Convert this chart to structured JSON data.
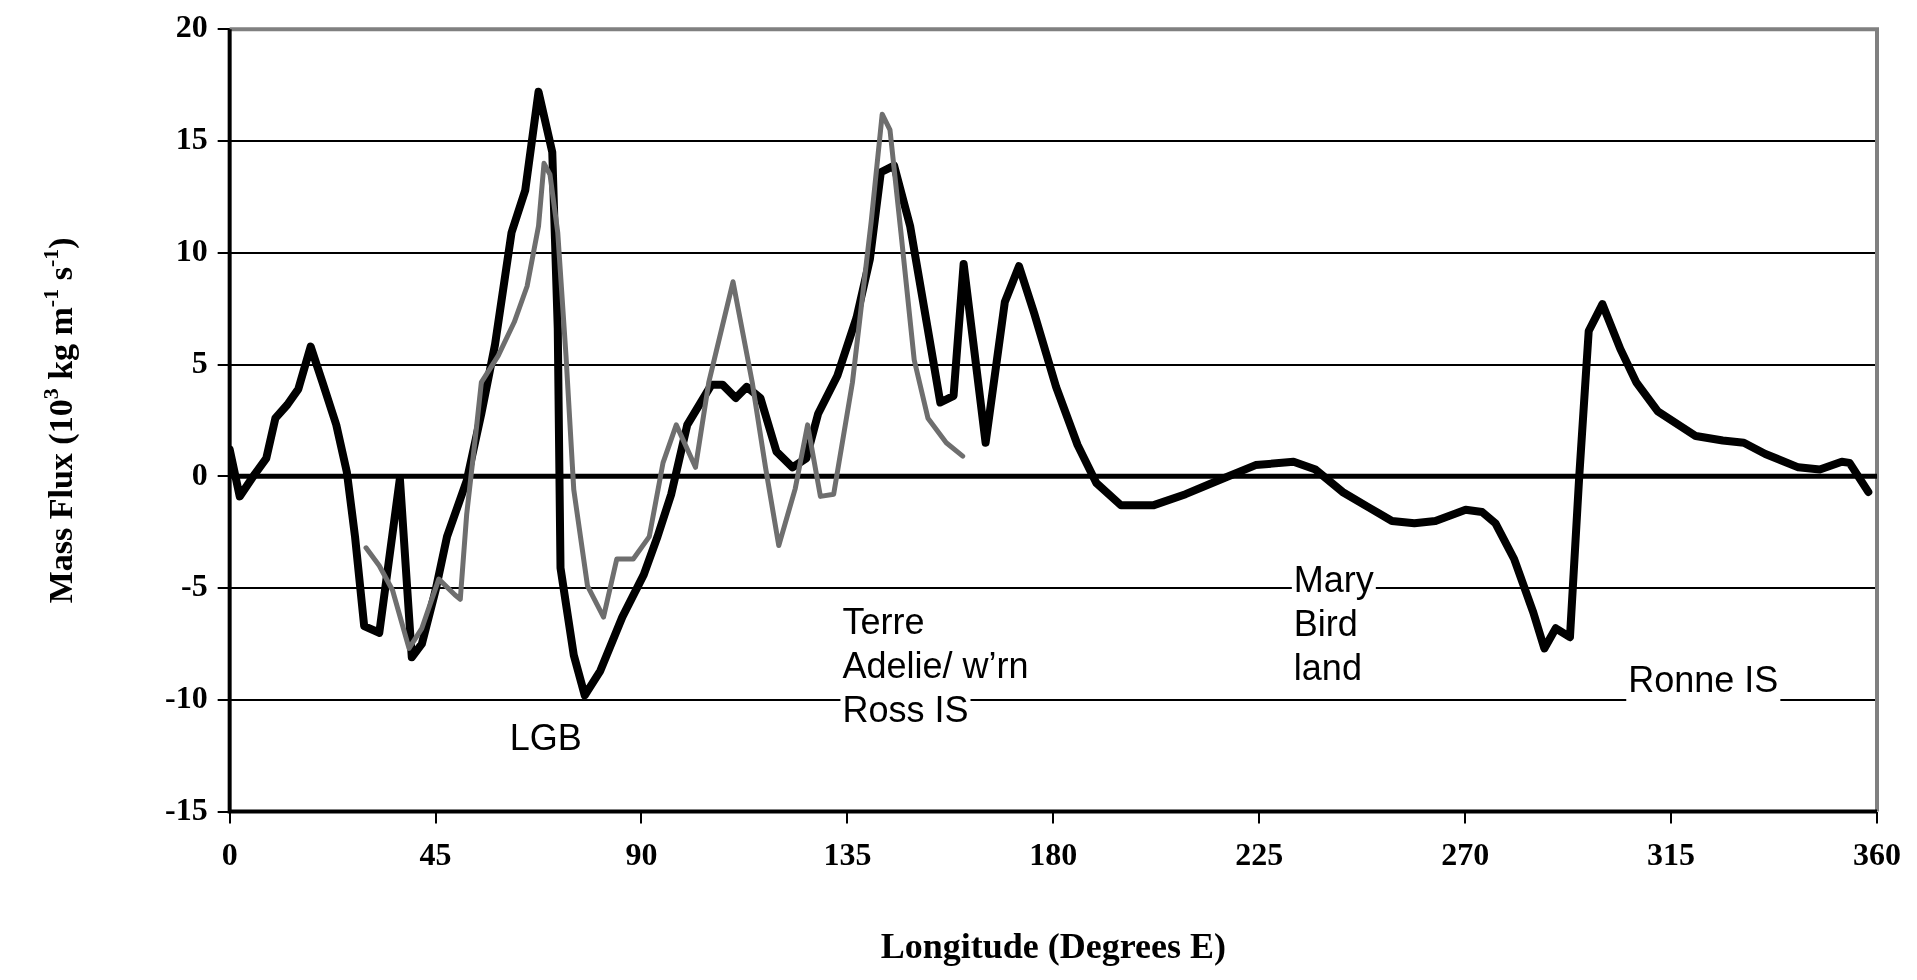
{
  "chart_data": {
    "type": "line",
    "xlabel": "Longitude (Degrees E)",
    "ylabel": "Mass Flux (10$^{3}$ kg m$^{-1}$ s$^{-1}$)",
    "xlim": [
      0,
      360
    ],
    "xticks": [
      0,
      45,
      90,
      135,
      180,
      225,
      270,
      315,
      360
    ],
    "ylim": [
      -15,
      20
    ],
    "yticks": [
      -15,
      -10,
      -5,
      0,
      5,
      10,
      15,
      20
    ],
    "grid": "y",
    "legend": false,
    "marker": "none",
    "line_style": "solid",
    "ref_lines": [
      {
        "axis": "y",
        "value": 0,
        "color": "#000000"
      }
    ],
    "annotations": [
      "LGB",
      "Terre\nAdelie/ w’rn\nRoss IS",
      "Mary\nBird\nland",
      "Ronne IS"
    ],
    "series": [
      {
        "color": "#6e6e6e",
        "x": [
          29.8,
          32.7,
          35.6,
          39.2,
          42,
          45.7,
          49.2,
          50.4,
          51.8,
          54,
          55,
          58.7,
          62.2,
          65,
          67.5,
          68.7,
          70,
          71.7,
          73.5,
          75.2,
          78.2,
          81.7,
          84.6,
          88.2,
          91.7,
          94.7,
          97.6,
          101.8,
          104.7,
          110,
          114.2,
          117.1,
          120,
          123.6,
          126.3,
          129.1,
          132,
          136.1,
          140.2,
          142.6,
          144.3,
          146.7,
          149.6,
          152.6,
          156.6,
          160.2
        ],
        "values": [
          -3.2,
          -4,
          -5.1,
          -7.7,
          -6.8,
          -4.6,
          -5.3,
          -5.5,
          -1.7,
          2.3,
          4.2,
          5.4,
          6.9,
          8.5,
          11.2,
          14,
          13.5,
          10.9,
          5.4,
          -0.6,
          -4.9,
          -6.3,
          -3.7,
          -3.7,
          -2.7,
          0.6,
          2.3,
          0.4,
          4.2,
          8.7,
          4.2,
          0.4,
          -3.1,
          -0.55,
          2.3,
          -0.9,
          -0.8,
          4.2,
          11.4,
          16.2,
          15.5,
          10.9,
          5.2,
          2.6,
          1.5,
          0.9
        ]
      },
      {
        "color": "#000000",
        "x": [
          0,
          2.2,
          5.5,
          8,
          10,
          12.6,
          15,
          17.7,
          20.3,
          23.3,
          25.6,
          27.4,
          29.4,
          32.7,
          37.2,
          39.8,
          42,
          45,
          47.5,
          51.8,
          55,
          58,
          61.6,
          64.6,
          67.5,
          70.5,
          71.7,
          72.3,
          75.2,
          77.6,
          81,
          85.8,
          90.5,
          93.5,
          96.5,
          100,
          105.3,
          107.7,
          110.6,
          113,
          116,
          119.5,
          123,
          126,
          128.6,
          132.8,
          137,
          139.9,
          142.3,
          145.2,
          148.7,
          152.3,
          155.3,
          158.2,
          160.4,
          165.2,
          169.4,
          172.5,
          175.8,
          180.6,
          185.3,
          189.4,
          194.8,
          201.8,
          208.9,
          215.9,
          224.2,
          232.5,
          237.3,
          243.2,
          249,
          254,
          258.9,
          263.5,
          270.1,
          273.7,
          276.6,
          280.7,
          284.9,
          287.3,
          289.8,
          292.9,
          294.9,
          297,
          300,
          303.9,
          307.4,
          312.1,
          320.4,
          326.3,
          330.9,
          335.6,
          342.8,
          347.5,
          352.3,
          354,
          358.1
        ],
        "values": [
          1.2,
          -0.9,
          0.1,
          0.8,
          2.6,
          3.2,
          3.9,
          5.8,
          4.2,
          2.3,
          0.2,
          -2.7,
          -6.7,
          -7,
          -0.1,
          -8.1,
          -7.5,
          -5.1,
          -2.7,
          -0.2,
          2.8,
          5.9,
          10.9,
          12.8,
          17.2,
          14.5,
          6.6,
          -4.1,
          -8,
          -9.8,
          -8.7,
          -6.3,
          -4.4,
          -2.7,
          -0.8,
          2.3,
          4.1,
          4.1,
          3.5,
          4,
          3.5,
          1.1,
          0.4,
          0.8,
          2.8,
          4.5,
          7.1,
          9.7,
          13.6,
          13.9,
          11.2,
          6.9,
          3.3,
          3.6,
          9.5,
          1.5,
          7.8,
          9.4,
          7.3,
          4,
          1.4,
          -0.3,
          -1.3,
          -1.3,
          -0.8,
          -0.2,
          0.5,
          0.65,
          0.3,
          -0.7,
          -1.4,
          -2,
          -2.1,
          -2,
          -1.5,
          -1.6,
          -2.1,
          -3.7,
          -6.1,
          -7.7,
          -6.8,
          -7.2,
          -0.1,
          6.5,
          7.7,
          5.7,
          4.2,
          2.9,
          1.8,
          1.6,
          1.5,
          1,
          0.4,
          0.3,
          0.65,
          0.6,
          -0.7
        ]
      }
    ]
  }
}
